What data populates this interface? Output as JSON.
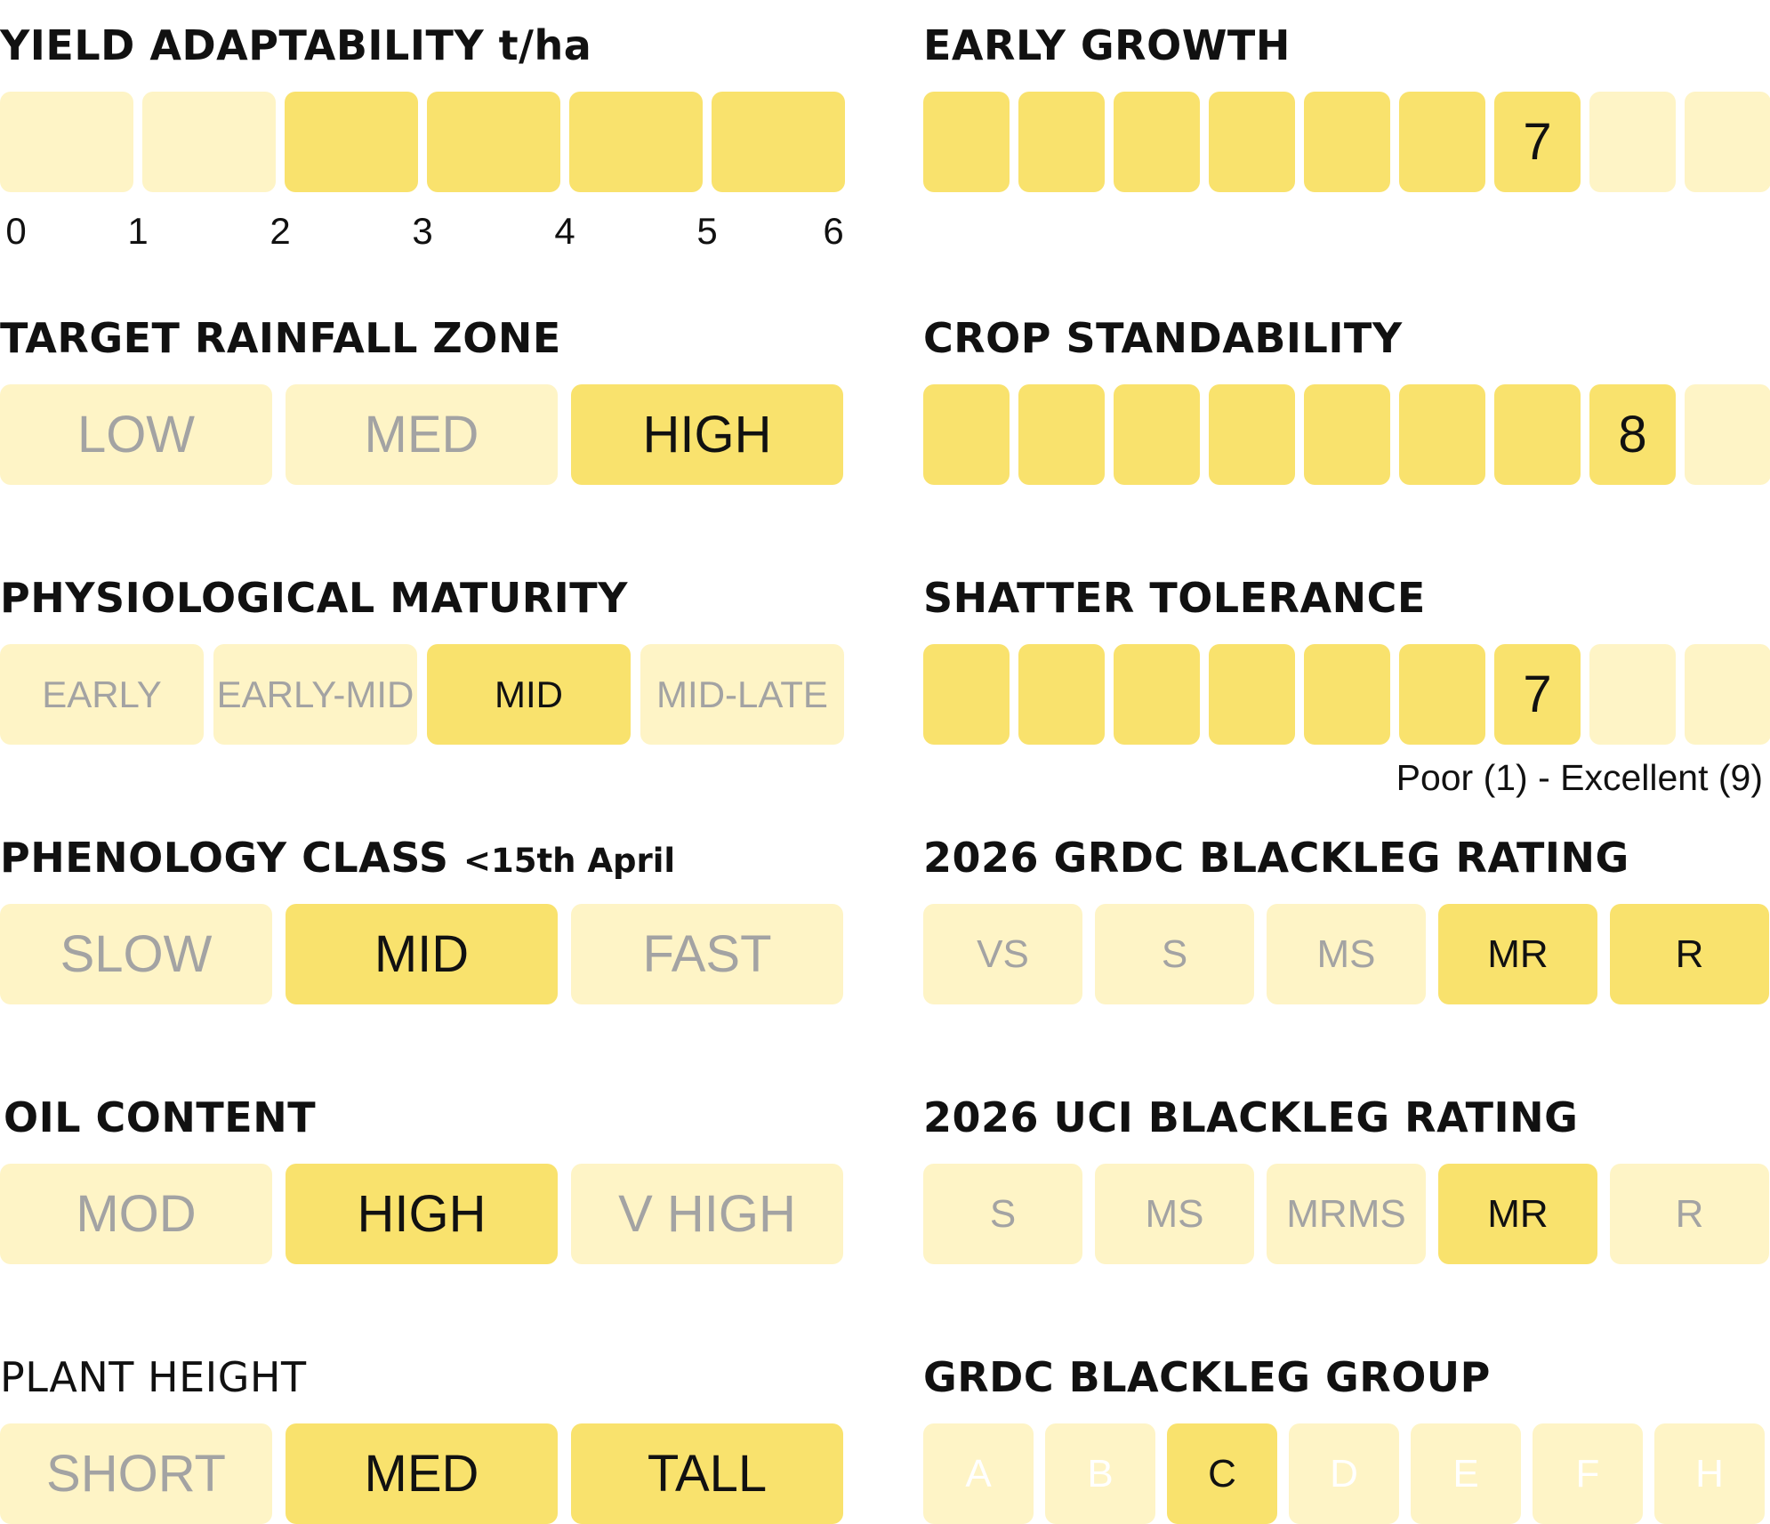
{
  "yield_adaptability": {
    "title": "YIELD ADAPTABILITY t/ha",
    "ticks": [
      "0",
      "1",
      "2",
      "3",
      "4",
      "5",
      "6"
    ],
    "segments": 6,
    "highlighted_from": 2,
    "highlighted_to": 6,
    "colors": {
      "on": "#f9e26d",
      "off": "#fef4c6"
    }
  },
  "target_rainfall_zone": {
    "title": "TARGET RAINFALL ZONE",
    "options": [
      {
        "label": "LOW",
        "selected": false
      },
      {
        "label": "MED",
        "selected": false
      },
      {
        "label": "HIGH",
        "selected": true
      }
    ]
  },
  "physiological_maturity": {
    "title": "PHYSIOLOGICAL MATURITY",
    "options": [
      {
        "label": "EARLY",
        "selected": false
      },
      {
        "label": "EARLY-MID",
        "selected": false
      },
      {
        "label": "MID",
        "selected": true
      },
      {
        "label": "MID-LATE",
        "selected": false
      }
    ]
  },
  "phenology_class": {
    "title": "PHENOLOGY CLASS",
    "subtitle": "<15th April",
    "options": [
      {
        "label": "SLOW",
        "selected": false
      },
      {
        "label": "MID",
        "selected": true
      },
      {
        "label": "FAST",
        "selected": false
      }
    ]
  },
  "oil_content": {
    "title": "OIL CONTENT",
    "options": [
      {
        "label": "MOD",
        "selected": false
      },
      {
        "label": "HIGH",
        "selected": true
      },
      {
        "label": "V HIGH",
        "selected": false
      }
    ]
  },
  "plant_height": {
    "title": "PLANT HEIGHT",
    "options": [
      {
        "label": "SHORT",
        "selected": false
      },
      {
        "label": "MED",
        "selected": true
      },
      {
        "label": "TALL",
        "selected": true
      }
    ]
  },
  "early_growth": {
    "title": "EARLY GROWTH",
    "rating": 7,
    "label": "7",
    "max": 9
  },
  "crop_standability": {
    "title": "CROP STANDABILITY",
    "rating": 8,
    "label": "8",
    "max": 9
  },
  "shatter_tolerance": {
    "title": "SHATTER TOLERANCE",
    "rating": 7,
    "label": "7",
    "max": 9
  },
  "scale_note": "Poor (1) - Excellent (9)",
  "grdc_blackleg_rating": {
    "title": "2026 GRDC BLACKLEG RATING",
    "options": [
      {
        "label": "VS",
        "selected": false
      },
      {
        "label": "S",
        "selected": false
      },
      {
        "label": "MS",
        "selected": false
      },
      {
        "label": "MR",
        "selected": true
      },
      {
        "label": "R",
        "selected": true
      }
    ]
  },
  "uci_blackleg_rating": {
    "title": "2026 UCI BLACKLEG RATING",
    "options": [
      {
        "label": "S",
        "selected": false
      },
      {
        "label": "MS",
        "selected": false
      },
      {
        "label": "MRMS",
        "selected": false
      },
      {
        "label": "MR",
        "selected": true
      },
      {
        "label": "R",
        "selected": false
      }
    ]
  },
  "grdc_blackleg_group": {
    "title": "GRDC BLACKLEG GROUP",
    "options": [
      {
        "label": "A",
        "selected": false
      },
      {
        "label": "B",
        "selected": false
      },
      {
        "label": "C",
        "selected": true
      },
      {
        "label": "D",
        "selected": false
      },
      {
        "label": "E",
        "selected": false
      },
      {
        "label": "F",
        "selected": false
      },
      {
        "label": "H",
        "selected": false
      }
    ]
  }
}
